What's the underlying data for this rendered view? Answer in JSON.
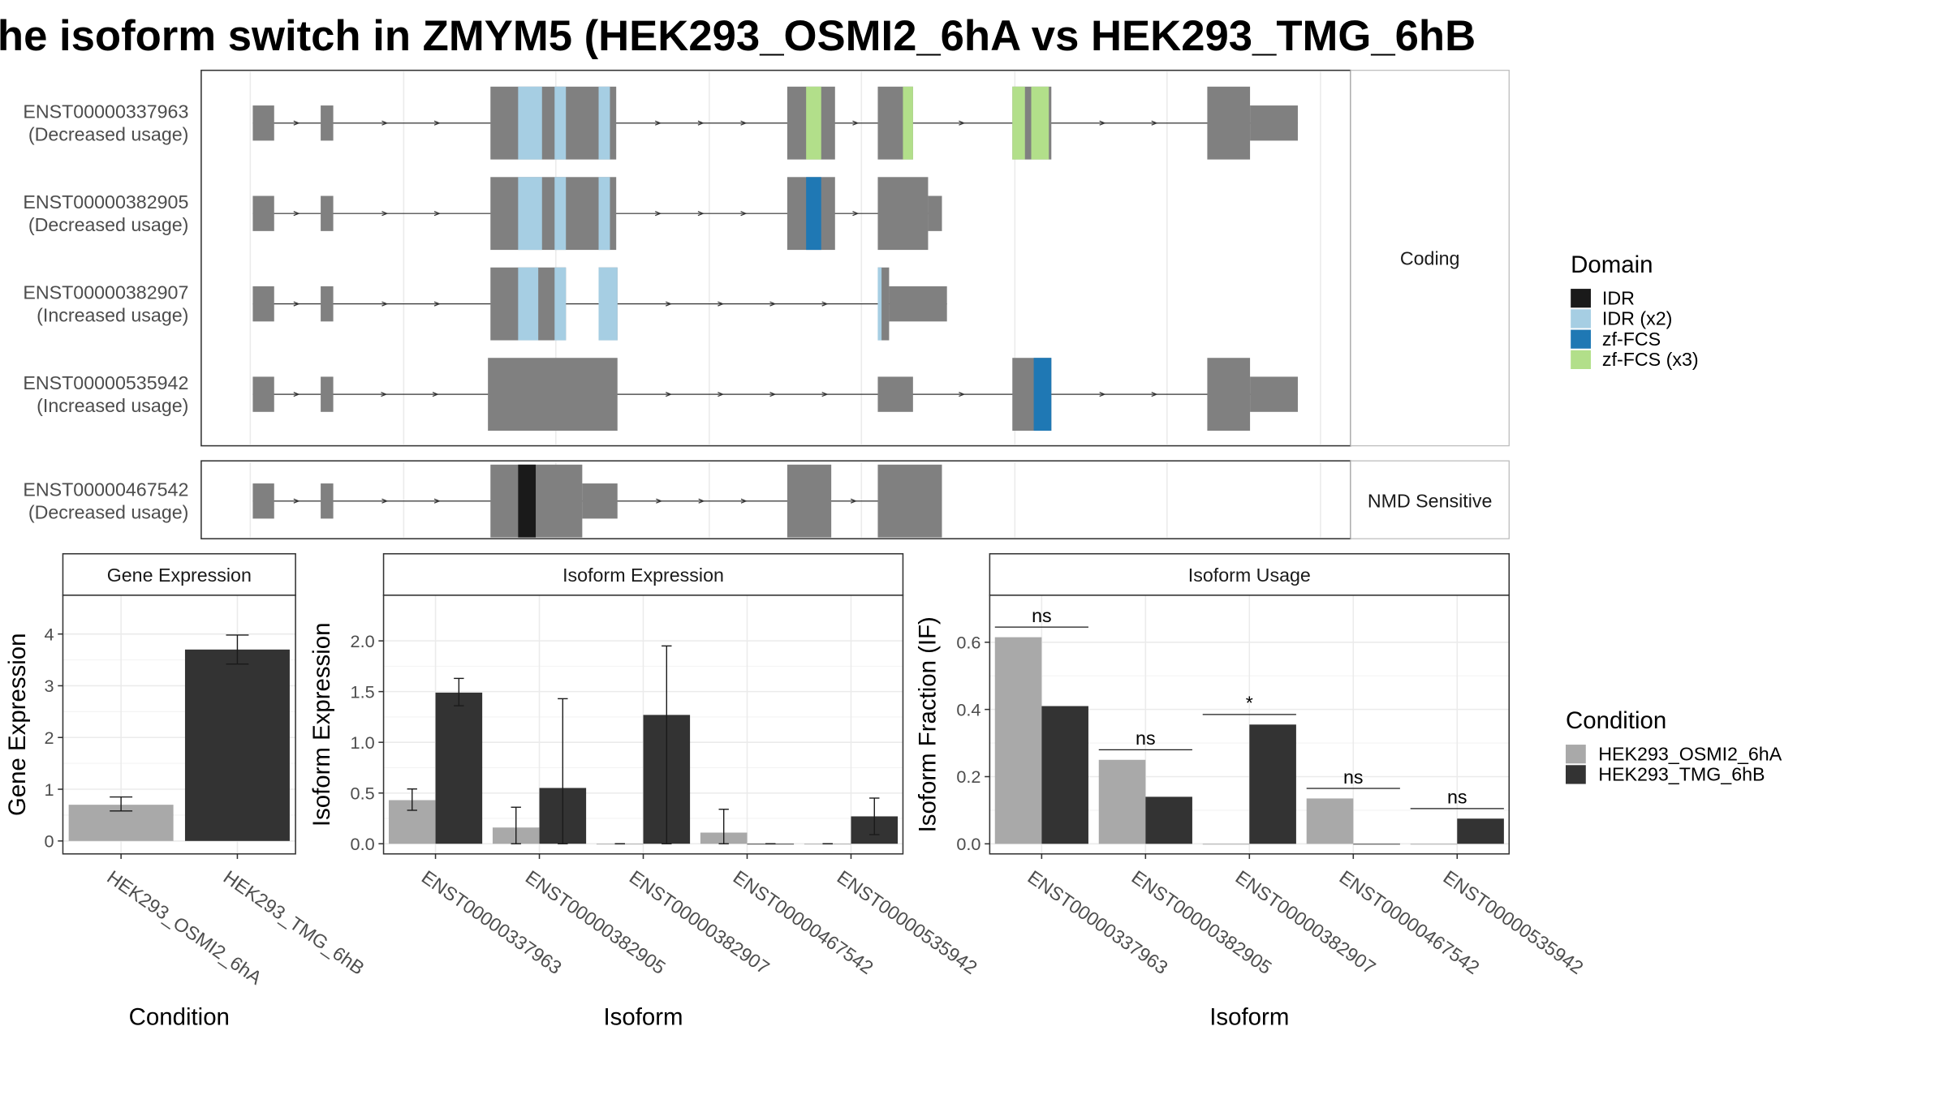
{
  "title": "he isoform switch in ZMYM5 (HEK293_OSMI2_6hA vs HEK293_TMG_6hB",
  "colors": {
    "exon": "#808080",
    "idr": "#1a1a1a",
    "idr_x2": "#a6cee3",
    "zf_fcs": "#1f78b4",
    "zf_fcs_x3": "#b2df8a",
    "cond_a": "#a9a9a9",
    "cond_b": "#333333"
  },
  "transcript_panel": {
    "coding": {
      "strip_label": "Coding",
      "transcripts": [
        {
          "id": "ENST00000337963",
          "usage": "(Decreased usage)",
          "exons": [
            [
              201,
              218,
              "s"
            ],
            [
              255,
              265,
              "s"
            ],
            [
              390,
              490,
              "t"
            ],
            [
              626,
              664,
              "t"
            ],
            [
              698,
              726,
              "t"
            ],
            [
              805,
              836,
              "t"
            ],
            [
              960,
              994,
              "t"
            ],
            [
              994,
              1032,
              "s"
            ]
          ],
          "domains": [
            [
              412,
              431,
              "idr_x2"
            ],
            [
              441,
              450,
              "idr_x2"
            ],
            [
              476,
              485,
              "idr_x2"
            ],
            [
              641,
              653,
              "zf_fcs_x3"
            ],
            [
              718,
              726,
              "zf_fcs_x3"
            ],
            [
              805,
              815,
              "zf_fcs_x3"
            ],
            [
              820,
              834,
              "zf_fcs_x3"
            ]
          ]
        },
        {
          "id": "ENST00000382905",
          "usage": "(Decreased usage)",
          "exons": [
            [
              201,
              218,
              "s"
            ],
            [
              255,
              265,
              "s"
            ],
            [
              390,
              490,
              "t"
            ],
            [
              626,
              664,
              "t"
            ],
            [
              698,
              738,
              "t"
            ],
            [
              738,
              749,
              "s"
            ]
          ],
          "domains": [
            [
              412,
              431,
              "idr_x2"
            ],
            [
              441,
              450,
              "idr_x2"
            ],
            [
              476,
              485,
              "idr_x2"
            ],
            [
              641,
              653,
              "zf_fcs"
            ]
          ]
        },
        {
          "id": "ENST00000382907",
          "usage": "(Increased usage)",
          "exons": [
            [
              201,
              218,
              "s"
            ],
            [
              255,
              265,
              "s"
            ],
            [
              390,
              450,
              "t"
            ],
            [
              476,
              491,
              "t"
            ],
            [
              698,
              707,
              "t"
            ],
            [
              707,
              753,
              "s"
            ]
          ],
          "domains": [
            [
              412,
              428,
              "idr_x2"
            ],
            [
              441,
              450,
              "idr_x2"
            ],
            [
              476,
              491,
              "idr_x2"
            ],
            [
              698,
              701,
              "idr_x2"
            ]
          ]
        },
        {
          "id": "ENST00000535942",
          "usage": "(Increased usage)",
          "exons": [
            [
              201,
              218,
              "s"
            ],
            [
              255,
              265,
              "s"
            ],
            [
              388,
              491,
              "t"
            ],
            [
              698,
              726,
              "s"
            ],
            [
              805,
              836,
              "t"
            ],
            [
              960,
              994,
              "t"
            ],
            [
              994,
              1032,
              "s"
            ]
          ],
          "domains": [
            [
              822,
              836,
              "zf_fcs"
            ]
          ]
        }
      ]
    },
    "nmd": {
      "strip_label": "NMD Sensitive",
      "transcripts": [
        {
          "id": "ENST00000467542",
          "usage": "(Decreased usage)",
          "exons": [
            [
              201,
              218,
              "s"
            ],
            [
              255,
              265,
              "s"
            ],
            [
              390,
              463,
              "t"
            ],
            [
              463,
              491,
              "s"
            ],
            [
              626,
              661,
              "t"
            ],
            [
              698,
              749,
              "t"
            ]
          ],
          "domains": [
            [
              412,
              426,
              "idr"
            ]
          ]
        }
      ]
    }
  },
  "legend_domain": {
    "title": "Domain",
    "items": [
      {
        "label": "IDR",
        "color_key": "idr"
      },
      {
        "label": "IDR (x2)",
        "color_key": "idr_x2"
      },
      {
        "label": "zf-FCS",
        "color_key": "zf_fcs"
      },
      {
        "label": "zf-FCS (x3)",
        "color_key": "zf_fcs_x3"
      }
    ]
  },
  "legend_condition": {
    "title": "Condition",
    "items": [
      {
        "label": "HEK293_OSMI2_6hA",
        "color_key": "cond_a"
      },
      {
        "label": "HEK293_TMG_6hB",
        "color_key": "cond_b"
      }
    ]
  },
  "chart_data": [
    {
      "type": "bar",
      "title": "Gene Expression",
      "xlabel": "Condition",
      "ylabel": "Gene Expression",
      "ylim": [
        -0.25,
        4.75
      ],
      "yticks": [
        0,
        1,
        2,
        3,
        4
      ],
      "categories": [
        "HEK293_OSMI2_6hA",
        "HEK293_TMG_6hB"
      ],
      "values": [
        0.7,
        3.7
      ],
      "errors": [
        [
          0.58,
          0.85
        ],
        [
          3.42,
          3.98
        ]
      ]
    },
    {
      "type": "bar",
      "title": "Isoform Expression",
      "xlabel": "Isoform",
      "ylabel": "Isoform Expression",
      "ylim": [
        -0.1,
        2.45
      ],
      "yticks": [
        0.0,
        0.5,
        1.0,
        1.5,
        2.0
      ],
      "categories": [
        "ENST00000337963",
        "ENST00000382905",
        "ENST00000382907",
        "ENST00000467542",
        "ENST00000535942"
      ],
      "series": [
        {
          "name": "HEK293_OSMI2_6hA",
          "values": [
            0.43,
            0.16,
            0.0,
            0.11,
            0.0
          ],
          "errors": [
            [
              0.33,
              0.54
            ],
            [
              0.0,
              0.36
            ],
            [
              0.0,
              0.0
            ],
            [
              0.0,
              0.34
            ],
            [
              0.0,
              0.0
            ]
          ]
        },
        {
          "name": "HEK293_TMG_6hB",
          "values": [
            1.49,
            0.55,
            1.27,
            0.0,
            0.27
          ],
          "errors": [
            [
              1.36,
              1.63
            ],
            [
              0.0,
              1.43
            ],
            [
              0.0,
              1.95
            ],
            [
              0.0,
              0.0
            ],
            [
              0.09,
              0.45
            ]
          ]
        }
      ]
    },
    {
      "type": "bar",
      "title": "Isoform Usage",
      "xlabel": "Isoform",
      "ylabel": "Isoform Fraction (IF)",
      "ylim": [
        -0.03,
        0.74
      ],
      "yticks": [
        0.0,
        0.2,
        0.4,
        0.6
      ],
      "categories": [
        "ENST00000337963",
        "ENST00000382905",
        "ENST00000382907",
        "ENST00000467542",
        "ENST00000535942"
      ],
      "series": [
        {
          "name": "HEK293_OSMI2_6hA",
          "values": [
            0.615,
            0.25,
            0.0,
            0.135,
            0.0
          ]
        },
        {
          "name": "HEK293_TMG_6hB",
          "values": [
            0.41,
            0.14,
            0.355,
            0.0,
            0.075
          ]
        }
      ],
      "significance": [
        {
          "label": "ns",
          "y": 0.645
        },
        {
          "label": "ns",
          "y": 0.28
        },
        {
          "label": "*",
          "y": 0.385
        },
        {
          "label": "ns",
          "y": 0.165
        },
        {
          "label": "ns",
          "y": 0.105
        }
      ]
    }
  ]
}
